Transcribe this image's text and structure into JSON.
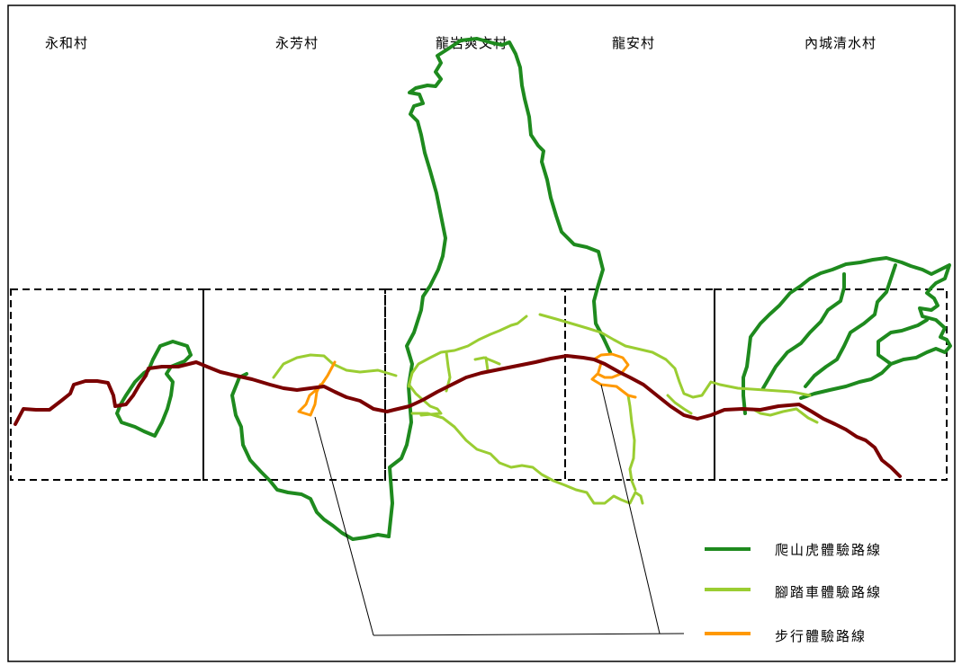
{
  "villages": [
    "永和村",
    "永芳村",
    "龍岩爽文村",
    "龍安村",
    "內城清水村"
  ],
  "legend": {
    "items": [
      {
        "label": "爬山虎體驗路線",
        "color": "#1e8a1e"
      },
      {
        "label": "腳踏車體驗路線",
        "color": "#9acd32"
      },
      {
        "label": "步行體驗路線",
        "color": "#ff9900"
      }
    ]
  },
  "colors": {
    "main_road": "#7a0000",
    "hiking": "#1e8a1e",
    "cycling": "#9acd32",
    "walking": "#ff9900",
    "border": "#000000"
  }
}
